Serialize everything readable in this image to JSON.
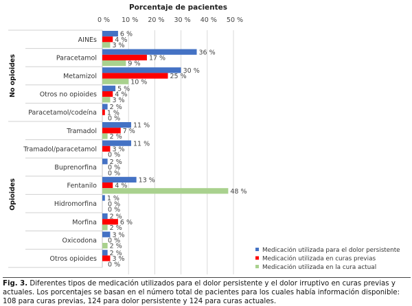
{
  "chart_data": {
    "type": "bar",
    "orientation": "horizontal",
    "title": "Porcentaje de pacientes",
    "xlim": [
      0,
      50
    ],
    "xticks": [
      "0 %",
      "10 %",
      "20 %",
      "30 %",
      "40 %",
      "50 %"
    ],
    "grid": true,
    "legend_placement": "bottom-right",
    "groups": [
      {
        "name": "No opioides",
        "count": 5
      },
      {
        "name": "Opioides",
        "count": 8
      }
    ],
    "categories": [
      "AINEs",
      "Paracetamol",
      "Metamizol",
      "Otros no opioides",
      "Paracetamol/codeína",
      "Tramadol",
      "Tramadol/paracetamol",
      "Buprenorfina",
      "Fentanilo",
      "Hidromorfina",
      "Morfina",
      "Oxicodona",
      "Otros opioides"
    ],
    "series": [
      {
        "name": "Medicación utilizada para el dolor persistente",
        "color": "#4472c4",
        "values": [
          6,
          36,
          30,
          5,
          2,
          11,
          11,
          2,
          13,
          1,
          2,
          3,
          2
        ]
      },
      {
        "name": "Medicación utilizada en curas previas",
        "color": "#ff0000",
        "values": [
          4,
          17,
          25,
          4,
          1,
          7,
          3,
          0,
          4,
          0,
          6,
          0,
          3
        ]
      },
      {
        "name": "Medicación utilizada en la cura actual",
        "color": "#a9d18e",
        "values": [
          3,
          9,
          10,
          3,
          0,
          2,
          0,
          0,
          48,
          0,
          2,
          2,
          0
        ]
      }
    ]
  },
  "caption": {
    "label": "Fig. 3.",
    "text": "Diferentes tipos de medicación utilizados para el dolor persistente y el dolor irruptivo en curas previas y actuales. Los porcentajes se basan en el número total de pacientes para los cuales había información disponible: 108 para curas previas, 124 para dolor persistente y 124 para curas actuales."
  }
}
